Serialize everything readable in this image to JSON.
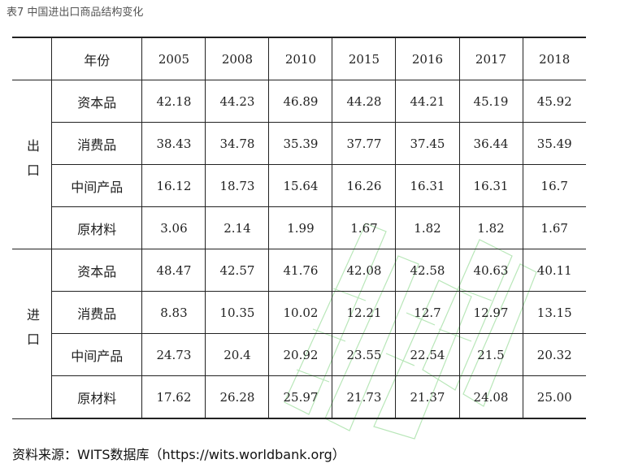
{
  "caption": "表7 中国进出口商品结构变化",
  "header": {
    "category_label": "年份",
    "years": [
      "2005",
      "2008",
      "2010",
      "2015",
      "2016",
      "2017",
      "2018"
    ]
  },
  "groups": [
    {
      "label": "出口",
      "rows": [
        {
          "category": "资本品",
          "values": [
            "42.18",
            "44.23",
            "46.89",
            "44.28",
            "44.21",
            "45.19",
            "45.92"
          ]
        },
        {
          "category": "消费品",
          "values": [
            "38.43",
            "34.78",
            "35.39",
            "37.77",
            "37.45",
            "36.44",
            "35.49"
          ]
        },
        {
          "category": "中间产品",
          "values": [
            "16.12",
            "18.73",
            "15.64",
            "16.26",
            "16.31",
            "16.31",
            "16.7"
          ]
        },
        {
          "category": "原材料",
          "values": [
            "3.06",
            "2.14",
            "1.99",
            "1.67",
            "1.82",
            "1.82",
            "1.67"
          ]
        }
      ]
    },
    {
      "label": "进口",
      "rows": [
        {
          "category": "资本品",
          "values": [
            "48.47",
            "42.57",
            "41.76",
            "42.08",
            "42.58",
            "40.63",
            "40.11"
          ]
        },
        {
          "category": "消费品",
          "values": [
            "8.83",
            "10.35",
            "10.02",
            "12.21",
            "12.7",
            "12.97",
            "13.15"
          ]
        },
        {
          "category": "中间产品",
          "values": [
            "24.73",
            "20.4",
            "20.92",
            "23.55",
            "22.54",
            "21.5",
            "20.32"
          ]
        },
        {
          "category": "原材料",
          "values": [
            "17.62",
            "26.28",
            "25.97",
            "21.73",
            "21.37",
            "24.08",
            "25.00"
          ]
        }
      ]
    }
  ],
  "source": "资料来源：WITS数据库（https://wits.worldbank.org）",
  "colors": {
    "watermark": "#7fd37f",
    "border": "#222222"
  }
}
